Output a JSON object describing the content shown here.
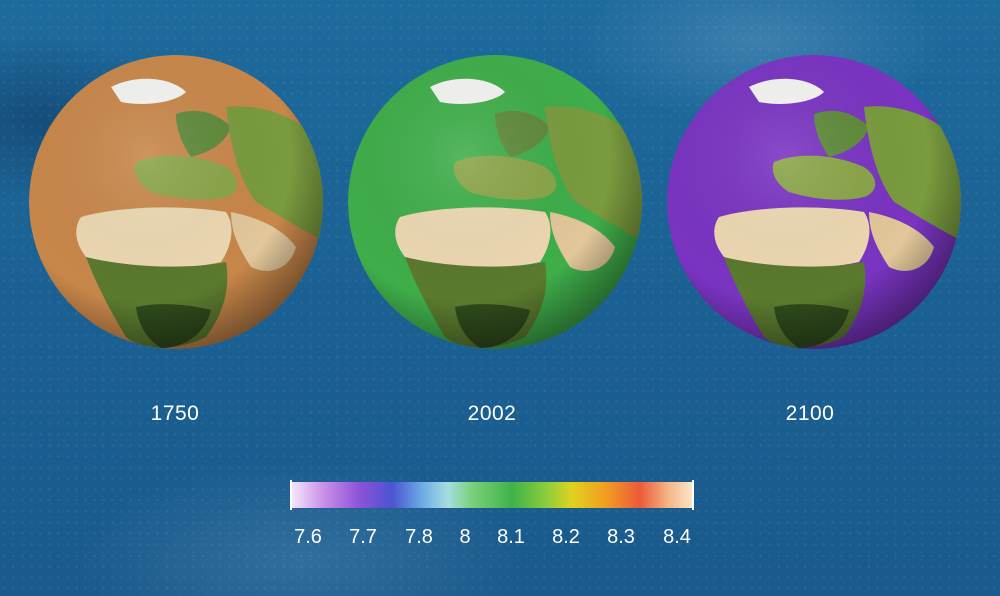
{
  "years": [
    {
      "label": "1750"
    },
    {
      "label": "2002"
    },
    {
      "label": "2100"
    }
  ],
  "colorbar": {
    "ticks": [
      "7.6",
      "7.7",
      "7.8",
      "8",
      "8.1",
      "8.2",
      "8.3",
      "8.4"
    ],
    "min": 7.6,
    "max": 8.4
  },
  "ocean_colors": {
    "1750": "#c8874a",
    "2002": "#3fae4a",
    "2100": "#7a34c2"
  }
}
